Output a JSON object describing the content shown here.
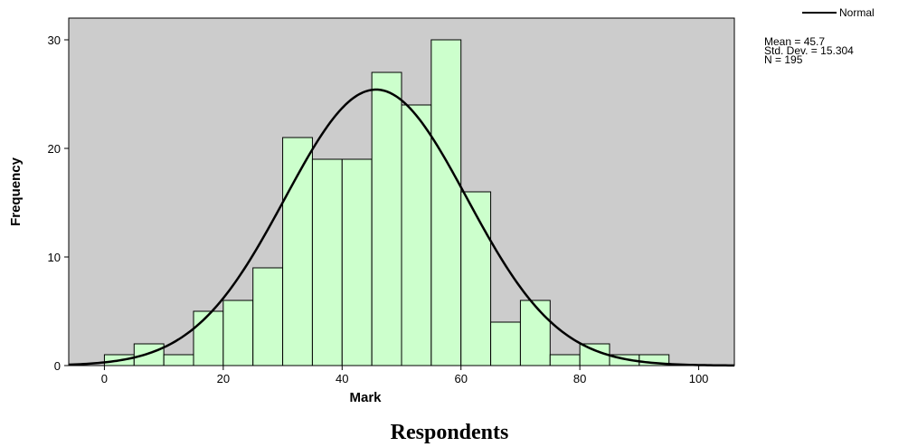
{
  "chart_data": {
    "type": "bar",
    "title": "",
    "xlabel": "Mark",
    "ylabel": "Frequency",
    "caption": "Respondents",
    "xlim": [
      -6,
      106
    ],
    "ylim": [
      0,
      32
    ],
    "x_ticks": [
      0,
      20,
      40,
      60,
      80,
      100
    ],
    "y_ticks": [
      0,
      10,
      20,
      30
    ],
    "bin_width": 5,
    "bin_starts": [
      0,
      5,
      10,
      15,
      20,
      25,
      30,
      35,
      40,
      45,
      50,
      55,
      60,
      65,
      70,
      75,
      80,
      85,
      90
    ],
    "values": [
      1,
      2,
      1,
      5,
      6,
      9,
      21,
      19,
      19,
      27,
      24,
      30,
      16,
      4,
      6,
      1,
      2,
      1,
      1
    ],
    "bar_color": "#ccffcc",
    "background_color": "#cccccc",
    "grid": false,
    "normal_curve": {
      "label": "Normal",
      "mean": 45.7,
      "std_dev": 15.304,
      "n": 195
    },
    "stats": [
      "Mean = 45.7",
      "Std. Dev. = 15.304",
      "N = 195"
    ],
    "legend_position": "top-right"
  }
}
